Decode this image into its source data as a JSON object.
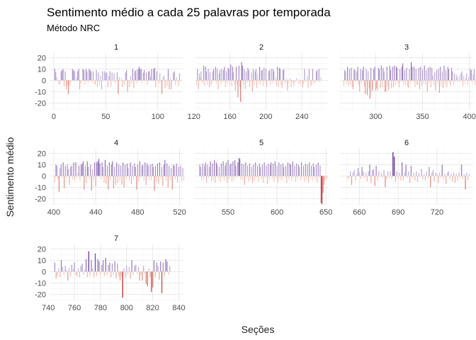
{
  "chart_data": {
    "type": "bar",
    "title": "Sentimento médio a cada 25 palavras por temporada",
    "subtitle": "Método NRC",
    "xlabel": "Seções",
    "ylabel": "Sentimento médio",
    "ylim": [
      -26,
      24
    ],
    "yticks": [
      -20,
      -10,
      0,
      10,
      20
    ],
    "grid": true,
    "legend": "none",
    "color_scale": {
      "positive_light": "#dcd6ee",
      "positive_dark": "#3f007d",
      "negative_light": "#fde0d2",
      "negative_dark": "#bd1b1b"
    },
    "panels": [
      {
        "label": "1",
        "xlim": [
          -4,
          124
        ],
        "xticks": [
          0,
          50,
          100
        ],
        "x_start": 1,
        "values": [
          10,
          7,
          3,
          -1,
          -4,
          -3,
          8,
          9,
          10,
          -5,
          8,
          -8,
          -4,
          -12,
          -5,
          -3,
          -1,
          10,
          9,
          8,
          -1,
          3,
          8,
          10,
          -8,
          -3,
          -1,
          10,
          9,
          -4,
          10,
          8,
          -3,
          10,
          9,
          8,
          -2,
          8,
          -3,
          -4,
          9,
          -6,
          7,
          -4,
          4,
          -8,
          8,
          -1,
          8,
          6,
          7,
          -6,
          4,
          8,
          -5,
          7,
          -1,
          6,
          -3,
          -1,
          7,
          -12,
          3,
          -1,
          2,
          -6,
          -1,
          -4,
          7,
          9,
          -10,
          -1,
          -6,
          4,
          -3,
          10,
          -7,
          8,
          9,
          -3,
          10,
          12,
          10,
          10,
          -3,
          7,
          9,
          -1,
          7,
          -4,
          8,
          8,
          3,
          10,
          -1,
          10,
          11,
          -6,
          8,
          -1,
          -3,
          6,
          -2,
          -12,
          3,
          4,
          -7,
          1,
          -5,
          10,
          -8,
          2,
          -8,
          -1,
          7,
          8,
          -4,
          3,
          -1,
          -5,
          6,
          -1
        ]
      },
      {
        "label": "2",
        "xlim": [
          121,
          269
        ],
        "xticks": [
          120,
          160,
          200,
          240
        ],
        "x_start": 123,
        "values": [
          -4,
          10,
          -8,
          6,
          3,
          8,
          -2,
          -3,
          13,
          -5,
          12,
          8,
          -4,
          10,
          -6,
          7,
          -5,
          -3,
          8,
          10,
          -1,
          12,
          -3,
          10,
          -8,
          6,
          9,
          -4,
          10,
          -2,
          9,
          12,
          -6,
          8,
          -3,
          11,
          10,
          -4,
          14,
          -5,
          12,
          7,
          -3,
          -9,
          12,
          -4,
          -15,
          13,
          -6,
          -19,
          16,
          13,
          -4,
          10,
          -8,
          8,
          -3,
          11,
          9,
          -6,
          -2,
          7,
          -10,
          10,
          -4,
          8,
          10,
          -7,
          5,
          -3,
          12,
          -4,
          9,
          9,
          -5,
          11,
          -2,
          10,
          -6,
          -1,
          8,
          9,
          -4,
          10,
          -3,
          10,
          8,
          -2,
          3,
          -5,
          12,
          -6,
          11,
          10,
          -4,
          -7,
          9,
          10,
          -3,
          -2,
          2,
          -9,
          -3,
          1,
          2,
          -6,
          -2,
          -1,
          -5,
          -2,
          -1,
          2,
          1,
          -3,
          1,
          -4,
          -1,
          -2,
          -6,
          -3,
          10,
          -2,
          -1,
          4,
          -7,
          10,
          -1,
          -5,
          -4,
          10,
          -1,
          -3,
          -2,
          8,
          9,
          -1,
          10,
          -2,
          3
        ]
      },
      {
        "label": "3",
        "xlim": [
          262,
          404
        ],
        "xticks": [
          300,
          350,
          400
        ],
        "x_start": 266,
        "values": [
          -5,
          9,
          8,
          -3,
          12,
          -5,
          10,
          -4,
          11,
          -6,
          -8,
          10,
          9,
          -2,
          8,
          12,
          -4,
          -10,
          10,
          -3,
          9,
          12,
          -5,
          -12,
          10,
          -13,
          8,
          -7,
          -16,
          11,
          -10,
          -8,
          10,
          12,
          -9,
          -7,
          -9,
          11,
          10,
          -7,
          13,
          -6,
          11,
          8,
          -10,
          -10,
          12,
          -5,
          -9,
          13,
          9,
          -7,
          12,
          -6,
          13,
          -4,
          12,
          11,
          -3,
          -6,
          10,
          -2,
          12,
          15,
          -4,
          9,
          -4,
          11,
          -5,
          -7,
          10,
          -3,
          16,
          12,
          -2,
          12,
          -6,
          10,
          -4,
          -4,
          11,
          -8,
          12,
          -5,
          9,
          -3,
          13,
          -4,
          9,
          -10,
          11,
          -3,
          12,
          -6,
          11,
          4,
          -4,
          7,
          -9,
          9,
          -3,
          10,
          -11,
          12,
          -5,
          8,
          -7,
          13,
          -4,
          9,
          -6,
          12,
          10,
          -3,
          -5,
          11,
          8,
          -4,
          6,
          -2,
          5,
          3,
          -2,
          4,
          -1,
          6,
          8,
          -5,
          4,
          -3,
          2,
          6,
          -4,
          3,
          -2,
          10,
          9,
          -3,
          5,
          10,
          -4,
          2
        ]
      },
      {
        "label": "4",
        "xlim": [
          396,
          523
        ],
        "xticks": [
          400,
          440,
          480,
          520
        ],
        "x_start": 401,
        "values": [
          -5,
          10,
          9,
          -3,
          -14,
          7,
          10,
          -2,
          12,
          -11,
          9,
          -2,
          10,
          6,
          -8,
          8,
          9,
          -3,
          12,
          -4,
          12,
          -2,
          3,
          9,
          -4,
          10,
          11,
          13,
          -12,
          9,
          -6,
          13,
          8,
          -3,
          10,
          -13,
          6,
          -4,
          12,
          -9,
          12,
          13,
          15,
          11,
          -3,
          12,
          8,
          -6,
          14,
          -7,
          9,
          -12,
          12,
          -4,
          10,
          13,
          -11,
          8,
          -8,
          12,
          -6,
          10,
          -4,
          9,
          -8,
          12,
          -10,
          10,
          -3,
          11,
          7,
          -4,
          12,
          -7,
          9,
          -3,
          11,
          8,
          -12,
          10,
          -5,
          13,
          -2,
          9,
          10,
          -4,
          12,
          -8,
          11,
          9,
          -3,
          10,
          -4,
          11,
          8,
          -13,
          9,
          -5,
          11,
          -7,
          12,
          -3,
          8,
          -9,
          10,
          14,
          -4,
          11,
          -10,
          9,
          -4,
          7,
          -12,
          10,
          9,
          -3,
          11,
          -6,
          8,
          -2,
          9,
          -5,
          7,
          -4
        ]
      },
      {
        "label": "5",
        "xlim": [
          516,
          652
        ],
        "xticks": [
          550,
          600,
          650
        ],
        "x_start": 521,
        "values": [
          10,
          8,
          -4,
          11,
          -3,
          9,
          12,
          -6,
          10,
          -2,
          8,
          13,
          -5,
          11,
          -4,
          14,
          -6,
          12,
          10,
          -3,
          8,
          -5,
          11,
          -2,
          13,
          -4,
          9,
          12,
          -6,
          14,
          -3,
          10,
          11,
          -5,
          13,
          -4,
          14,
          9,
          -2,
          12,
          16,
          15,
          -3,
          11,
          -4,
          10,
          -8,
          12,
          -2,
          9,
          -5,
          11,
          -3,
          8,
          -6,
          10,
          -4,
          12,
          -2,
          9,
          -5,
          11,
          8,
          -3,
          10,
          -6,
          12,
          -2,
          9,
          -7,
          11,
          -4,
          10,
          12,
          -3,
          11,
          -5,
          13,
          -2,
          9,
          -6,
          12,
          -3,
          10,
          -4,
          11,
          8,
          -2,
          9,
          -6,
          12,
          -3,
          11,
          10,
          -4,
          13,
          -2,
          9,
          -5,
          11,
          -3,
          10,
          8,
          -4,
          12,
          -2,
          9,
          -5,
          11,
          -3,
          10,
          -6,
          12,
          -2,
          9,
          -4,
          11,
          8,
          -3,
          10,
          -6,
          12,
          -2,
          9,
          -24,
          -25,
          -15,
          -8,
          -4,
          -2,
          -3,
          -1
        ]
      },
      {
        "label": "6",
        "xlim": [
          645,
          748
        ],
        "xticks": [
          660,
          690,
          720
        ],
        "x_start": 651,
        "values": [
          -3,
          -2,
          4,
          -8,
          3,
          5,
          -4,
          2,
          7,
          3,
          -3,
          8,
          4,
          -2,
          3,
          -5,
          4,
          10,
          -6,
          5,
          6,
          -9,
          9,
          -4,
          4,
          -1,
          3,
          -2,
          5,
          -10,
          -3,
          4,
          -2,
          4,
          -3,
          21,
          17,
          -5,
          4,
          -3,
          3,
          -4,
          12,
          -4,
          3,
          10,
          -2,
          4,
          -6,
          9,
          -2,
          3,
          -4,
          4,
          -5,
          3,
          -1,
          6,
          -3,
          2,
          -4,
          4,
          -2,
          8,
          -10,
          3,
          5,
          -5,
          3,
          2,
          -6,
          3,
          -2,
          10,
          -3,
          2,
          -7,
          3,
          4,
          -3,
          2,
          -5,
          3,
          -6,
          2,
          -4,
          3,
          -2,
          10,
          -3,
          2,
          -12,
          3,
          -4,
          2
        ]
      },
      {
        "label": "7",
        "xlim": [
          741,
          843
        ],
        "xticks": [
          740,
          760,
          780,
          800,
          820,
          840
        ],
        "x_start": 745,
        "values": [
          8,
          -6,
          -4,
          3,
          -5,
          10,
          4,
          -3,
          5,
          2,
          -8,
          3,
          -4,
          6,
          2,
          8,
          -3,
          -4,
          3,
          -5,
          5,
          7,
          -3,
          2,
          11,
          -5,
          18,
          -4,
          10,
          3,
          -5,
          16,
          -4,
          11,
          9,
          -3,
          6,
          10,
          -4,
          12,
          -3,
          6,
          8,
          -5,
          7,
          -3,
          9,
          -6,
          7,
          -4,
          -8,
          -4,
          -23,
          3,
          -5,
          5,
          -3,
          4,
          -6,
          10,
          -3,
          5,
          6,
          -2,
          4,
          -8,
          -3,
          -8,
          5,
          -2,
          -11,
          -13,
          3,
          -5,
          -18,
          -14,
          10,
          -5,
          8,
          5,
          -7,
          9,
          -19,
          8,
          -4,
          11,
          9,
          -3,
          5
        ]
      }
    ]
  }
}
